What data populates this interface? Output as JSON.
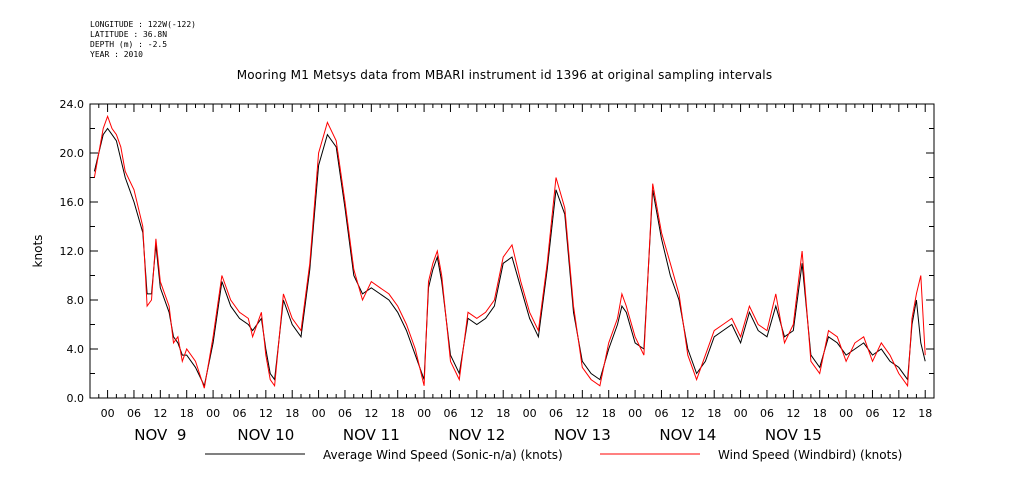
{
  "meta": {
    "longitude": "LONGITUDE : 122W(-122)",
    "latitude": "LATITUDE : 36.8N",
    "depth": "DEPTH (m) : -2.5",
    "year": "YEAR : 2010"
  },
  "chart_data": {
    "type": "line",
    "title": "Mooring M1 Metsys data from MBARI instrument id 1396 at original sampling intervals",
    "ylabel": "knots",
    "xlabel": "",
    "ylim": [
      0,
      24
    ],
    "yticks": [
      "0.0",
      "4.0",
      "8.0",
      "12.0",
      "16.0",
      "20.0",
      "24.0"
    ],
    "xlim_hours": [
      -4,
      188
    ],
    "hour_tick_labels": [
      "00",
      "06",
      "12",
      "18",
      "00",
      "06",
      "12",
      "18",
      "00",
      "06",
      "12",
      "18",
      "00",
      "06",
      "12",
      "18",
      "00",
      "06",
      "12",
      "18",
      "00",
      "06",
      "12",
      "18",
      "00",
      "06",
      "12",
      "18",
      "00",
      "06",
      "12",
      "18"
    ],
    "day_labels": [
      "NOV  9",
      "NOV 10",
      "NOV 11",
      "NOV 12",
      "NOV 13",
      "NOV 14",
      "NOV 15"
    ],
    "grid": false,
    "legend_position": "bottom",
    "x_hours": [
      -3,
      -1,
      0,
      1,
      2,
      3,
      4,
      6,
      8,
      9,
      10,
      11,
      12,
      14,
      15,
      16,
      17,
      18,
      20,
      22,
      24,
      26,
      28,
      30,
      32,
      33,
      35,
      36,
      37,
      38,
      40,
      42,
      44,
      46,
      48,
      50,
      52,
      54,
      56,
      58,
      60,
      62,
      64,
      66,
      68,
      70,
      72,
      73,
      74,
      75,
      76,
      78,
      80,
      82,
      84,
      86,
      88,
      90,
      92,
      94,
      96,
      98,
      100,
      102,
      104,
      106,
      108,
      110,
      112,
      114,
      116,
      117,
      118,
      120,
      122,
      124,
      126,
      128,
      130,
      132,
      134,
      136,
      138,
      140,
      142,
      144,
      146,
      148,
      150,
      152,
      154,
      156,
      158,
      160,
      162,
      164,
      166,
      168,
      170,
      172,
      174,
      176,
      178,
      180,
      182,
      183,
      184,
      185,
      186
    ],
    "series": [
      {
        "name": "Average Wind Speed (Sonic-n/a) (knots)",
        "color": "#000000",
        "values": [
          18.5,
          21.5,
          22.0,
          21.5,
          21.0,
          19.5,
          18.0,
          16.0,
          13.5,
          8.5,
          8.5,
          12.5,
          9.0,
          7.0,
          5.0,
          4.5,
          3.5,
          3.5,
          2.5,
          1.0,
          4.5,
          9.5,
          7.5,
          6.5,
          6.0,
          5.5,
          6.5,
          4.0,
          2.0,
          1.5,
          8.0,
          6.0,
          5.0,
          10.5,
          19.0,
          21.5,
          20.5,
          15.5,
          10.0,
          8.5,
          9.0,
          8.5,
          8.0,
          7.0,
          5.5,
          3.5,
          1.5,
          9.0,
          10.5,
          11.5,
          9.5,
          3.5,
          2.0,
          6.5,
          6.0,
          6.5,
          7.5,
          11.0,
          11.5,
          9.0,
          6.5,
          5.0,
          10.5,
          17.0,
          15.0,
          7.0,
          3.0,
          2.0,
          1.5,
          4.0,
          6.0,
          7.5,
          7.0,
          4.5,
          4.0,
          17.0,
          13.0,
          10.0,
          8.0,
          4.0,
          2.0,
          3.0,
          5.0,
          5.5,
          6.0,
          4.5,
          7.0,
          5.5,
          5.0,
          7.5,
          5.0,
          5.5,
          11.0,
          3.5,
          2.5,
          5.0,
          4.5,
          3.5,
          4.0,
          4.5,
          3.5,
          4.0,
          3.0,
          2.5,
          1.5,
          6.0,
          8.0,
          4.5,
          3.0
        ]
      },
      {
        "name": "Wind Speed (Windbird) (knots)",
        "color": "#ff0000",
        "values": [
          18.0,
          22.0,
          23.0,
          22.0,
          21.5,
          20.5,
          18.5,
          17.0,
          14.0,
          7.5,
          8.0,
          13.0,
          9.5,
          7.5,
          4.5,
          5.0,
          3.0,
          4.0,
          3.0,
          0.8,
          5.0,
          10.0,
          8.0,
          7.0,
          6.5,
          5.0,
          7.0,
          3.5,
          1.5,
          1.0,
          8.5,
          6.5,
          5.5,
          11.0,
          20.0,
          22.5,
          21.0,
          16.0,
          10.5,
          8.0,
          9.5,
          9.0,
          8.5,
          7.5,
          6.0,
          4.0,
          1.0,
          9.5,
          11.0,
          12.0,
          10.0,
          3.0,
          1.5,
          7.0,
          6.5,
          7.0,
          8.0,
          11.5,
          12.5,
          9.5,
          7.0,
          5.5,
          11.0,
          18.0,
          15.5,
          7.5,
          2.5,
          1.5,
          1.0,
          4.5,
          6.5,
          8.5,
          7.5,
          5.0,
          3.5,
          17.5,
          13.5,
          11.0,
          8.5,
          3.5,
          1.5,
          3.5,
          5.5,
          6.0,
          6.5,
          5.0,
          7.5,
          6.0,
          5.5,
          8.5,
          4.5,
          6.0,
          12.0,
          3.0,
          2.0,
          5.5,
          5.0,
          3.0,
          4.5,
          5.0,
          3.0,
          4.5,
          3.5,
          2.0,
          1.0,
          6.5,
          8.5,
          10.0,
          3.5
        ]
      }
    ]
  }
}
